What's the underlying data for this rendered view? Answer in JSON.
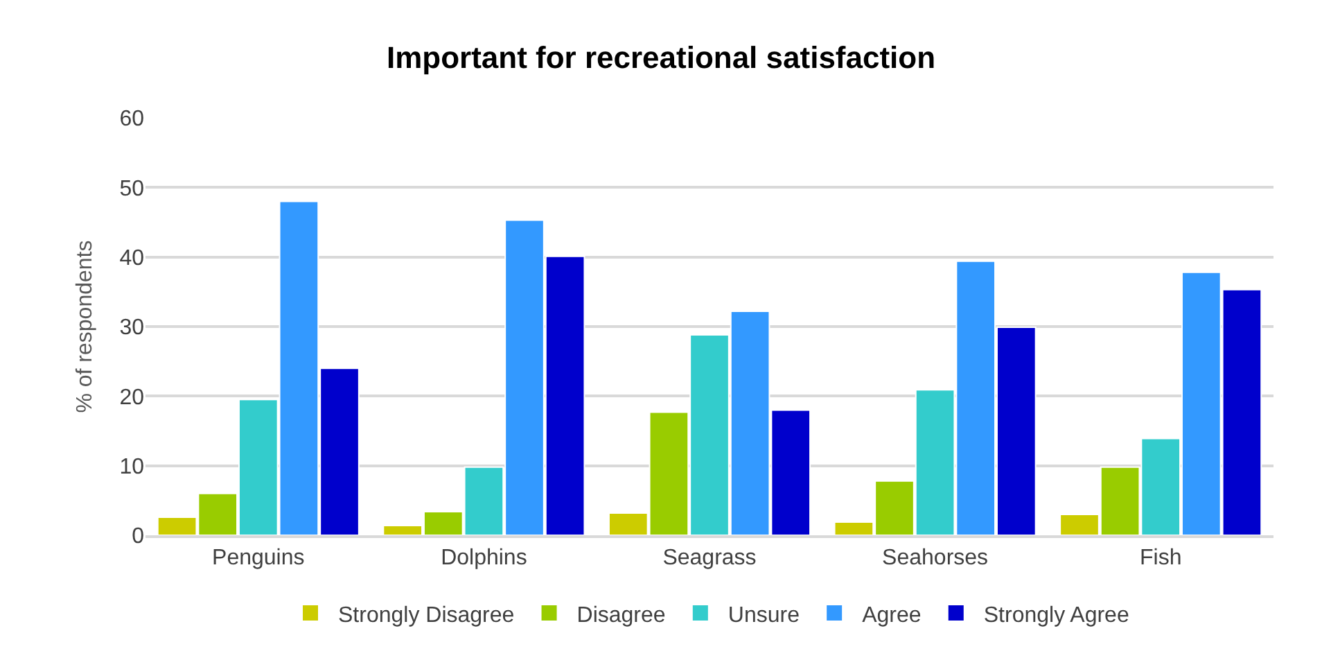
{
  "chart_data": {
    "type": "bar",
    "title": "Important for recreational satisfaction",
    "ylabel": "% of respondents",
    "categories": [
      "Penguins",
      "Dolphins",
      "Seagrass",
      "Seahorses",
      "Fish"
    ],
    "series": [
      {
        "name": "Strongly Disagree",
        "color": "#cccc00",
        "values": [
          2.6,
          1.4,
          3.2,
          1.9,
          3.0
        ]
      },
      {
        "name": "Disagree",
        "color": "#99cc00",
        "values": [
          6.0,
          3.4,
          17.7,
          7.8,
          9.8
        ]
      },
      {
        "name": "Unsure",
        "color": "#33cccc",
        "values": [
          19.5,
          9.8,
          28.8,
          20.9,
          13.9
        ]
      },
      {
        "name": "Agree",
        "color": "#3399ff",
        "values": [
          48.0,
          45.3,
          32.2,
          39.4,
          37.8
        ]
      },
      {
        "name": "Strongly Agree",
        "color": "#0000cc",
        "values": [
          24.0,
          40.1,
          18.0,
          29.9,
          35.3
        ]
      }
    ],
    "ylim": [
      0,
      60
    ],
    "yticks": [
      0,
      10,
      20,
      30,
      40,
      50,
      60
    ],
    "grid": "y",
    "legend": "bottom"
  }
}
